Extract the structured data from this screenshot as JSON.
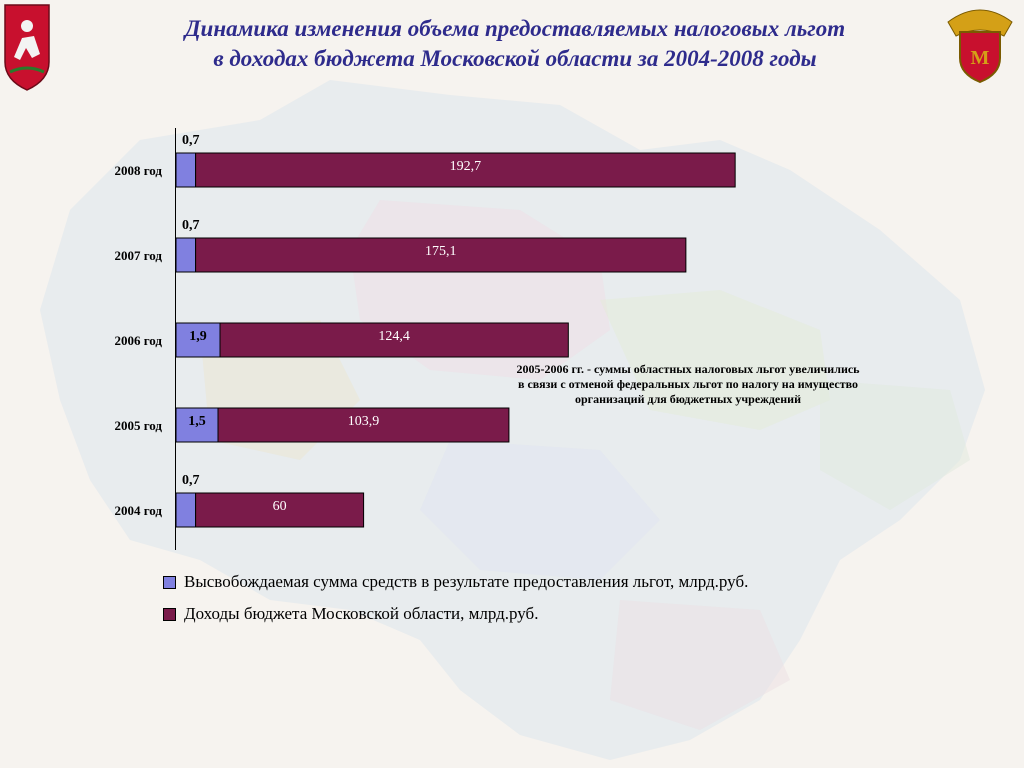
{
  "title": {
    "line1": "Динамика изменения объема предоставляемых налоговых льгот",
    "line2": "в доходах бюджета Московской области за 2004-2008 годы"
  },
  "emblems": {
    "left": "moscow-region-coat-of-arms-icon",
    "right": "eagle-emblem-icon"
  },
  "colors": {
    "released": "#8080e0",
    "budget": "#7a1b4a",
    "title": "#2e2b8c"
  },
  "note": {
    "line1": "2005-2006 гг. - суммы областных налоговых льгот увеличились",
    "line2": "в связи с отменой федеральных льгот по налогу на имущество",
    "line3": "организаций для бюджетных учреждений"
  },
  "chart_data": {
    "type": "bar",
    "orientation": "horizontal",
    "stacked": true,
    "categories": [
      "2008 год",
      "2007 год",
      "2006 год",
      "2005 год",
      "2004 год"
    ],
    "series": [
      {
        "name": "Высвобождаемая сумма средств в результате предоставления льгот, млрд.руб.",
        "values": [
          0.7,
          0.7,
          1.9,
          1.5,
          0.7
        ],
        "labels": [
          "0,7",
          "0,7",
          "1,9",
          "1,5",
          "0,7"
        ]
      },
      {
        "name": "Доходы бюджета Московской области, млрд.руб.",
        "values": [
          192.7,
          175.1,
          124.4,
          103.9,
          60
        ],
        "labels": [
          "192,7",
          "175,1",
          "124,4",
          "103,9",
          "60"
        ]
      }
    ],
    "legend_position": "bottom-left",
    "grid": false
  }
}
